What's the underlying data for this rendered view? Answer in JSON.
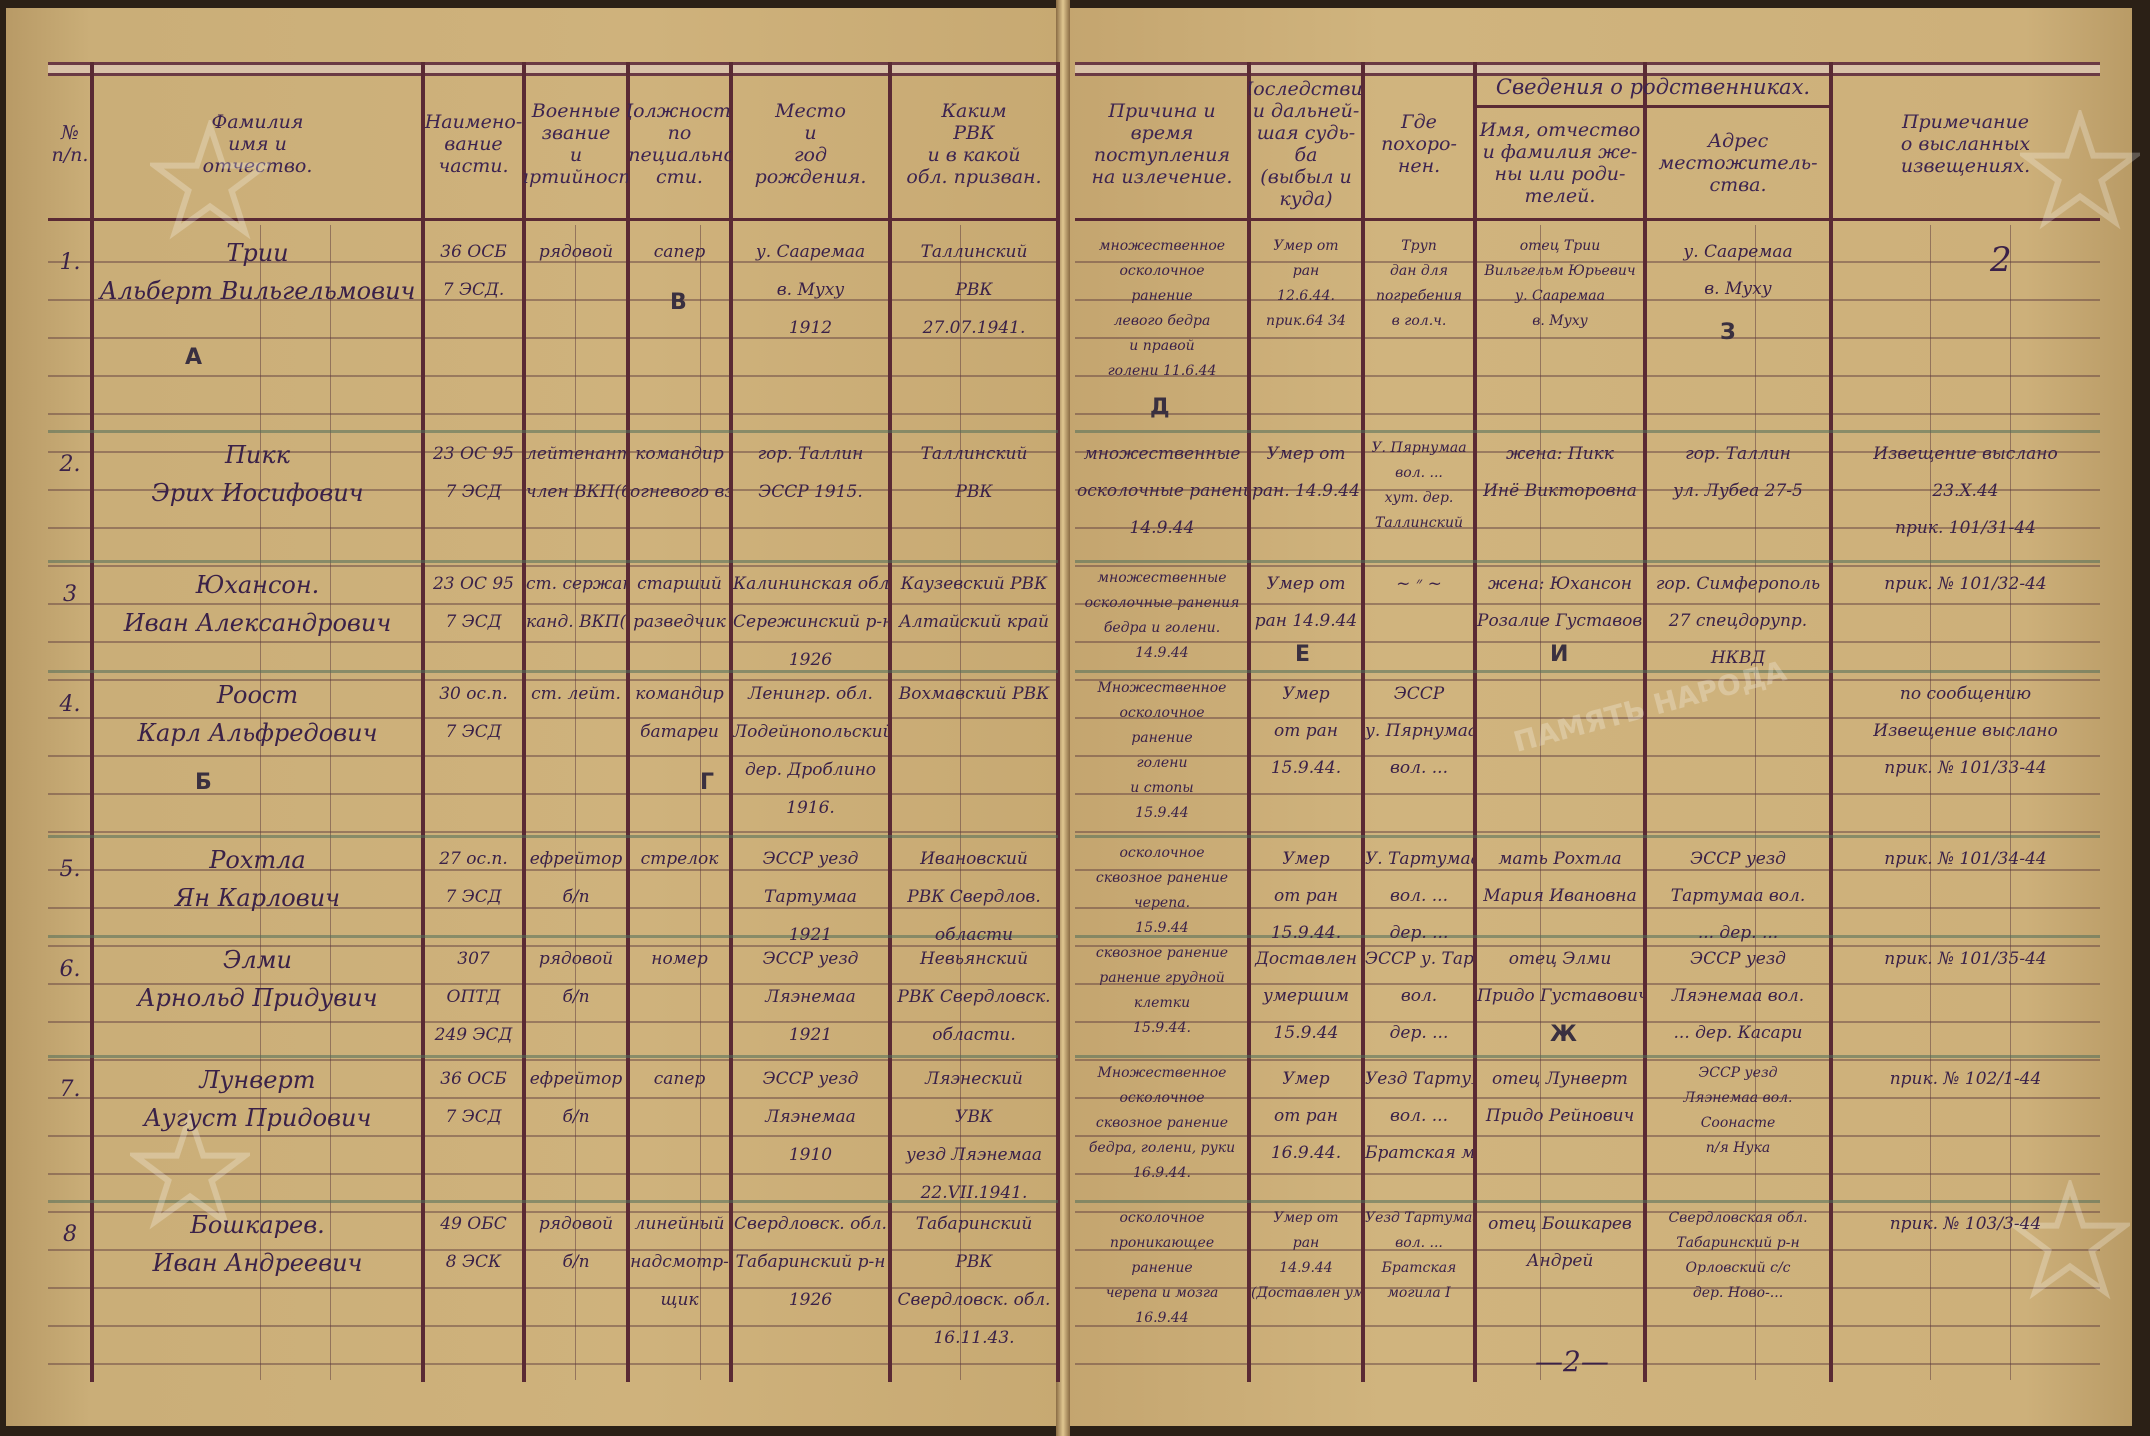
{
  "colors": {
    "ink": "#3a2148",
    "paper": "#cdb07a",
    "ruling": "#5a2a34"
  },
  "watermark": "ПАМЯТЬ НАРОДА",
  "left_headers": [
    "№\nп/п.",
    "Фамилия\nимя и\nотчество.",
    "Наимено-\nвание\nчасти.",
    "Военные\nзвание\nи\nпартийность",
    "Должность\nпо\nспециально-\nсти.",
    "Место\nи\nгод\nрождения.",
    "Каким\nРВК\nи в какой\nобл. призван."
  ],
  "right_headers": [
    "Причина и\nвремя\nпоступления\nна излечение.",
    "Последствия\nи дальней-\nшая судь-\nба\n(выбыл и куда)",
    "Где\nпохоро-\nнен.",
    "Имя, отчество\nи фамилия же-\nны или роди-\nтелей.",
    "Адрес\nместожитель-\nства.",
    "Примечание\nо высланных\nизвещениях."
  ],
  "relatives_header": "Сведения о родственниках.",
  "section_letters": {
    "a": "А",
    "b": "Б",
    "v": "В",
    "g": "Г",
    "d": "Д",
    "e": "Е",
    "zh": "Ж",
    "z": "З",
    "i": "И"
  },
  "page_number_top": "2",
  "page_number_bottom": "—2—",
  "rows": [
    {
      "num": "1.",
      "name": [
        "Трии",
        "Альберт Вильгельмович"
      ],
      "unit": [
        "36 ОСБ",
        "7 ЭСД."
      ],
      "rank": [
        "рядовой"
      ],
      "position": [
        "сапер"
      ],
      "birth": [
        "у. Сааремаа",
        "в. Муху",
        "1912"
      ],
      "rvk": [
        "Таллинский",
        "РВК",
        "27.07.1941."
      ],
      "cause": [
        "множественное",
        "осколочное",
        "ранение",
        "левого бедра",
        "и правой",
        "голени 11.6.44"
      ],
      "fate": [
        "Умер от",
        "ран",
        "12.6.44.",
        "прик.64 34"
      ],
      "buried": [
        "Труп",
        "дан для",
        "погребения",
        "в гол.ч."
      ],
      "relative": [
        "отец Трии",
        "Вильгельм Юрьевич",
        "у. Сааремаа",
        "в. Муху"
      ],
      "address": [
        "у. Сааремаа",
        "в. Муху"
      ],
      "notes": []
    },
    {
      "num": "2.",
      "name": [
        "Пикк",
        "Эрих Иосифович"
      ],
      "unit": [
        "23 ОС 95",
        "7 ЭСД"
      ],
      "rank": [
        "лейтенант",
        "член ВКП(б)"
      ],
      "position": [
        "командир",
        "огневого взвода"
      ],
      "birth": [
        "гор. Таллин",
        "ЭССР 1915."
      ],
      "rvk": [
        "Таллинский",
        "РВК"
      ],
      "cause": [
        "множественные",
        "осколочные ранения",
        "14.9.44"
      ],
      "fate": [
        "Умер от",
        "ран. 14.9.44"
      ],
      "buried": [
        "У. Пярнумаа",
        "вол. ...",
        "хут. дер.",
        "Таллинский"
      ],
      "relative": [
        "жена: Пикк",
        "Инё Викторовна"
      ],
      "address": [
        "гор. Таллин",
        "ул. Лубеа 27-5"
      ],
      "notes": [
        "Извещение выслано",
        "23.Х.44",
        "прик. 101/31-44"
      ]
    },
    {
      "num": "3",
      "name": [
        "Юхансон.",
        "Иван Александрович"
      ],
      "unit": [
        "23 ОС 95",
        "7 ЭСД"
      ],
      "rank": [
        "ст. сержант",
        "канд. ВКП(б)"
      ],
      "position": [
        "старший",
        "разведчик"
      ],
      "birth": [
        "Калининская обл.",
        "Сережинский р-н",
        "1926"
      ],
      "rvk": [
        "Каузевский РВК",
        "Алтайский край"
      ],
      "cause": [
        "множественные",
        "осколочные ранения",
        "бедра и голени.",
        "14.9.44"
      ],
      "fate": [
        "Умер от",
        "ран 14.9.44"
      ],
      "buried": [
        "~ ״ ~"
      ],
      "relative": [
        "жена: Юхансон",
        "Розалие Густавовна"
      ],
      "address": [
        "гор. Симферополь",
        "27 спецдорупр.",
        "НКВД"
      ],
      "notes": [
        "прик. № 101/32-44"
      ]
    },
    {
      "num": "4.",
      "name": [
        "Роост",
        "Карл Альфредович"
      ],
      "unit": [
        "30 ос.п.",
        "7 ЭСД"
      ],
      "rank": [
        "ст. лейт."
      ],
      "position": [
        "командир",
        "батареи"
      ],
      "birth": [
        "Ленингр. обл.",
        "Лодейнопольский р-н",
        "дер. Дроблино",
        "1916."
      ],
      "rvk": [
        "Вохмавский РВК"
      ],
      "cause": [
        "Множественное",
        "осколочное",
        "ранение",
        "голени",
        "и стопы",
        "15.9.44"
      ],
      "fate": [
        "Умер",
        "от ран",
        "15.9.44."
      ],
      "buried": [
        "ЭССР",
        "у. Пярнумаа",
        "вол. ..."
      ],
      "relative": [],
      "address": [],
      "notes": [
        "по сообщению",
        "Извещение выслано",
        "прик. № 101/33-44"
      ]
    },
    {
      "num": "5.",
      "name": [
        "Рохтла",
        "Ян Карлович"
      ],
      "unit": [
        "27 ос.п.",
        "7 ЭСД"
      ],
      "rank": [
        "ефрейтор",
        "б/п"
      ],
      "position": [
        "стрелок"
      ],
      "birth": [
        "ЭССР уезд",
        "Тартумаа",
        "1921"
      ],
      "rvk": [
        "Ивановский",
        "РВК Свердлов.",
        "области"
      ],
      "cause": [
        "осколочное",
        "сквозное ранение",
        "черепа.",
        "15.9.44"
      ],
      "fate": [
        "Умер",
        "от ран",
        "15.9.44."
      ],
      "buried": [
        "У. Тартумаа",
        "вол. ...",
        "дер. ..."
      ],
      "relative": [
        "мать Рохтла",
        "Мария Ивановна"
      ],
      "address": [
        "ЭССР уезд",
        "Тартумаа вол.",
        "... дер. ..."
      ],
      "notes": [
        "прик. № 101/34-44"
      ]
    },
    {
      "num": "6.",
      "name": [
        "Элми",
        "Арнольд Придувич"
      ],
      "unit": [
        "307",
        "ОПТД",
        "249 ЭСД"
      ],
      "rank": [
        "рядовой",
        "б/п"
      ],
      "position": [
        "номер"
      ],
      "birth": [
        "ЭССР уезд",
        "Ляэнемаа",
        "1921"
      ],
      "rvk": [
        "Невьянский",
        "РВК Свердловск.",
        "области."
      ],
      "cause": [
        "сквозное ранение",
        "ранение грудной",
        "клетки",
        "15.9.44."
      ],
      "fate": [
        "Доставлен",
        "умершим",
        "15.9.44"
      ],
      "buried": [
        "ЭССР у. Тарт.",
        "вол.",
        "дер. ..."
      ],
      "relative": [
        "отец Элми",
        "Придо Густавович"
      ],
      "address": [
        "ЭССР уезд",
        "Ляэнемаа вол.",
        "... дер. Касари"
      ],
      "notes": [
        "прик. № 101/35-44"
      ]
    },
    {
      "num": "7.",
      "name": [
        "Лунверт",
        "Аугуст Придович"
      ],
      "unit": [
        "36 ОСБ",
        "7 ЭСД"
      ],
      "rank": [
        "ефрейтор",
        "б/п"
      ],
      "position": [
        "сапер"
      ],
      "birth": [
        "ЭССР уезд",
        "Ляэнемаа",
        "1910"
      ],
      "rvk": [
        "Ляэнеский",
        "УВК",
        "уезд Ляэнемаа",
        "22.VII.1941."
      ],
      "cause": [
        "Множественное",
        "осколочное",
        "сквозное ранение",
        "бедра, голени, руки",
        "16.9.44."
      ],
      "fate": [
        "Умер",
        "от ран",
        "16.9.44."
      ],
      "buried": [
        "Уезд Тартумаа",
        "вол. ...",
        "Братская могила"
      ],
      "relative": [
        "отец Лунверт",
        "Придо Рейнович"
      ],
      "address": [
        "ЭССР уезд",
        "Ляэнемаа вол.",
        "Соонасте",
        "п/я Нука"
      ],
      "notes": [
        "прик. № 102/1-44"
      ]
    },
    {
      "num": "8",
      "name": [
        "Бошкарев.",
        "Иван Андреевич"
      ],
      "unit": [
        "49 ОБС",
        "8 ЭСК"
      ],
      "rank": [
        "рядовой",
        "б/п"
      ],
      "position": [
        "линейный",
        "надсмотр-",
        "щик"
      ],
      "birth": [
        "Свердловск. обл.",
        "Табаринский р-н",
        "1926"
      ],
      "rvk": [
        "Табаринский",
        "РВК",
        "Свердловск. обл.",
        "16.11.43."
      ],
      "cause": [
        "осколочное",
        "проникающее",
        "ранение",
        "черепа и мозга",
        "16.9.44"
      ],
      "fate": [
        "Умер от",
        "ран",
        "14.9.44",
        "(Доставлен умершим)"
      ],
      "buried": [
        "Уезд Тартумаа",
        "вол. ...",
        "Братская",
        "могила I"
      ],
      "relative": [
        "отец Бошкарев",
        "Андрей"
      ],
      "address": [
        "Свердловская обл.",
        "Табаринский р-н",
        "Орловский с/с",
        "дер. Ново-..."
      ],
      "notes": [
        "прик. № 103/3-44"
      ]
    }
  ]
}
